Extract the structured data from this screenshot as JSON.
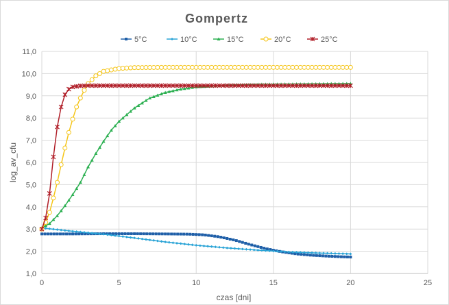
{
  "chart_data": {
    "type": "line",
    "title": "Gompertz",
    "xlabel": "czas [dni]",
    "ylabel": "log_av_cfu",
    "xlim": [
      0,
      25
    ],
    "ylim": [
      1.0,
      11.0
    ],
    "x_ticks": [
      0,
      5,
      10,
      15,
      20,
      25
    ],
    "y_ticks": [
      "1,0",
      "2,0",
      "3,0",
      "4,0",
      "5,0",
      "6,0",
      "7,0",
      "8,0",
      "9,0",
      "10,0",
      "11,0"
    ],
    "grid": "horizontal and vertical",
    "legend_position": "top",
    "x": [
      0,
      5,
      10,
      15,
      20
    ],
    "series": [
      {
        "name": "5°C",
        "color": "#1f5fa8",
        "marker": "square",
        "points": [
          [
            0,
            2.78
          ],
          [
            2,
            2.78
          ],
          [
            4,
            2.79
          ],
          [
            6,
            2.79
          ],
          [
            8,
            2.78
          ],
          [
            9.5,
            2.77
          ],
          [
            10.5,
            2.74
          ],
          [
            11.5,
            2.65
          ],
          [
            12.5,
            2.5
          ],
          [
            13.5,
            2.3
          ],
          [
            14.5,
            2.12
          ],
          [
            15.5,
            1.98
          ],
          [
            16.5,
            1.88
          ],
          [
            17.5,
            1.82
          ],
          [
            18.5,
            1.78
          ],
          [
            19.5,
            1.75
          ],
          [
            20,
            1.74
          ]
        ]
      },
      {
        "name": "10°C",
        "color": "#29a3d6",
        "marker": "diamond",
        "points": [
          [
            0,
            3.05
          ],
          [
            2,
            2.9
          ],
          [
            4,
            2.77
          ],
          [
            6,
            2.6
          ],
          [
            8,
            2.42
          ],
          [
            10,
            2.27
          ],
          [
            12,
            2.15
          ],
          [
            14,
            2.05
          ],
          [
            16,
            1.97
          ],
          [
            18,
            1.92
          ],
          [
            20,
            1.88
          ]
        ]
      },
      {
        "name": "15°C",
        "color": "#2db052",
        "marker": "triangle",
        "points": [
          [
            0,
            3.05
          ],
          [
            0.5,
            3.25
          ],
          [
            1,
            3.6
          ],
          [
            1.5,
            4.05
          ],
          [
            2,
            4.55
          ],
          [
            2.5,
            5.1
          ],
          [
            3,
            5.8
          ],
          [
            3.5,
            6.4
          ],
          [
            4,
            6.95
          ],
          [
            4.5,
            7.45
          ],
          [
            5,
            7.85
          ],
          [
            6,
            8.45
          ],
          [
            7,
            8.9
          ],
          [
            8,
            9.15
          ],
          [
            9,
            9.3
          ],
          [
            10,
            9.4
          ],
          [
            12,
            9.48
          ],
          [
            14,
            9.52
          ],
          [
            16,
            9.53
          ],
          [
            18,
            9.54
          ],
          [
            20,
            9.55
          ]
        ]
      },
      {
        "name": "20°C",
        "color": "#f5c518",
        "marker": "circle",
        "points": [
          [
            0,
            3.0
          ],
          [
            0.25,
            3.3
          ],
          [
            0.5,
            3.75
          ],
          [
            0.75,
            4.4
          ],
          [
            1,
            5.1
          ],
          [
            1.25,
            5.9
          ],
          [
            1.5,
            6.65
          ],
          [
            1.75,
            7.35
          ],
          [
            2,
            7.95
          ],
          [
            2.25,
            8.5
          ],
          [
            2.5,
            8.9
          ],
          [
            2.75,
            9.25
          ],
          [
            3,
            9.55
          ],
          [
            3.5,
            9.9
          ],
          [
            4,
            10.1
          ],
          [
            5,
            10.23
          ],
          [
            6,
            10.27
          ],
          [
            8,
            10.28
          ],
          [
            10,
            10.28
          ],
          [
            15,
            10.28
          ],
          [
            20,
            10.28
          ]
        ]
      },
      {
        "name": "25°C",
        "color": "#b01e28",
        "marker": "star",
        "points": [
          [
            0,
            3.0
          ],
          [
            0.25,
            3.5
          ],
          [
            0.5,
            4.6
          ],
          [
            0.75,
            6.25
          ],
          [
            1,
            7.6
          ],
          [
            1.25,
            8.5
          ],
          [
            1.5,
            9.05
          ],
          [
            1.75,
            9.3
          ],
          [
            2,
            9.4
          ],
          [
            2.5,
            9.45
          ],
          [
            3,
            9.46
          ],
          [
            5,
            9.46
          ],
          [
            10,
            9.46
          ],
          [
            15,
            9.46
          ],
          [
            20,
            9.46
          ]
        ]
      }
    ]
  }
}
